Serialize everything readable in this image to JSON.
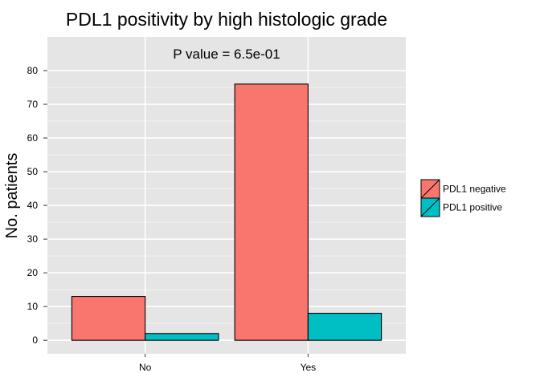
{
  "chart_data": {
    "type": "bar",
    "title": "PDL1 positivity by high histologic grade",
    "xlabel": "",
    "ylabel": "No. patients",
    "categories": [
      "No",
      "Yes"
    ],
    "series": [
      {
        "name": "PDL1 negative",
        "values": [
          13,
          76
        ],
        "color": "#F8766D"
      },
      {
        "name": "PDL1 positive",
        "values": [
          2,
          8
        ],
        "color": "#00BFC4"
      }
    ],
    "ylim": [
      -4,
      90
    ],
    "yticks": [
      0,
      10,
      20,
      30,
      40,
      50,
      60,
      70,
      80
    ],
    "annotation": "P value = 6.5e-01",
    "grid": true,
    "legend_position": "right",
    "panel_background": "#E5E5E5",
    "grid_color": "#FFFFFF"
  }
}
